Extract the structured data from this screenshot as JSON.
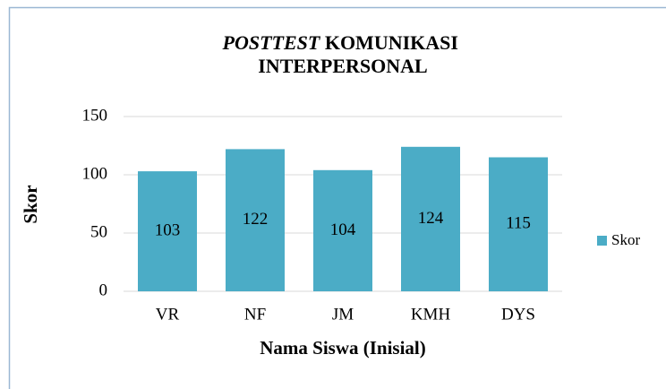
{
  "chart_data": {
    "type": "bar",
    "title": "POSTTEST KOMUNIKASI INTERPERSONAL",
    "categories": [
      "VR",
      "NF",
      "JM",
      "KMH",
      "DYS"
    ],
    "series": [
      {
        "name": "Skor",
        "color": "#4bacc6",
        "values": [
          103,
          122,
          104,
          124,
          115
        ]
      }
    ],
    "ylim": [
      0,
      150
    ],
    "yticks": [
      0,
      50,
      100,
      150
    ],
    "y_label": "Skor",
    "x_label": "Nama Siswa (Inisial)",
    "grid": true,
    "legend": "right",
    "data_labels": true
  }
}
